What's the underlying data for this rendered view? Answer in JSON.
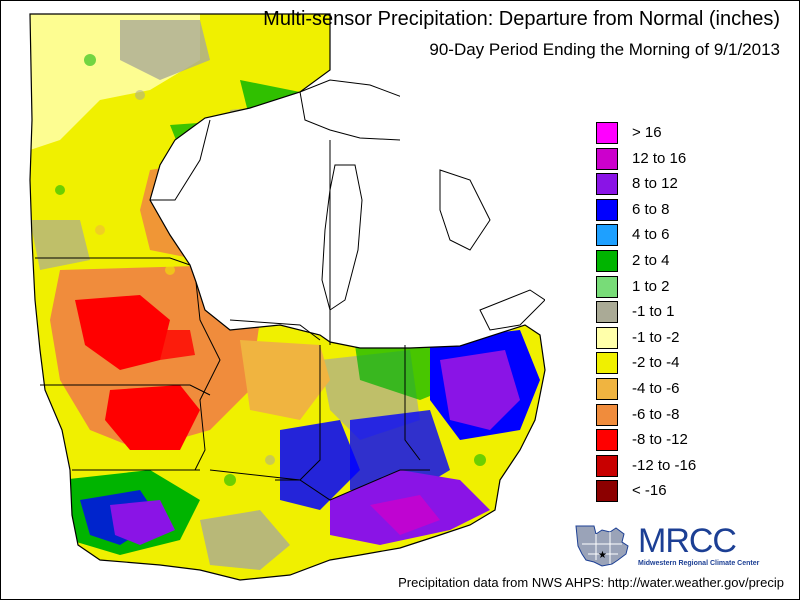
{
  "header": {
    "title": "Multi-sensor Precipitation: Departure from Normal (inches)",
    "subtitle": "90-Day Period Ending the Morning of 9/1/2013"
  },
  "legend": {
    "items": [
      {
        "label": "> 16",
        "color": "#ff00ff"
      },
      {
        "label": "12 to 16",
        "color": "#cc00cc"
      },
      {
        "label": "8 to 12",
        "color": "#8a14e6"
      },
      {
        "label": "6 to 8",
        "color": "#0000ff"
      },
      {
        "label": "4 to 6",
        "color": "#1ea0ff"
      },
      {
        "label": "2 to 4",
        "color": "#00b400"
      },
      {
        "label": "1 to 2",
        "color": "#78dc78"
      },
      {
        "label": "-1 to 1",
        "color": "#aaaa96"
      },
      {
        "label": "-1 to -2",
        "color": "#ffffaa"
      },
      {
        "label": "-2 to -4",
        "color": "#f0f000"
      },
      {
        "label": "-4 to -6",
        "color": "#f0b440"
      },
      {
        "label": "-6 to -8",
        "color": "#f08c3c"
      },
      {
        "label": "-8 to -12",
        "color": "#ff0000"
      },
      {
        "label": "-12 to -16",
        "color": "#c80000"
      },
      {
        "label": "< -16",
        "color": "#8c0000"
      }
    ]
  },
  "logo": {
    "name": "MRCC",
    "full_name": "Midwestern Regional Climate Center"
  },
  "footer": {
    "credit": "Precipitation data from NWS AHPS:  http://water.weather.gov/precip"
  },
  "colors": {
    "lake": "#ffffff",
    "border": "#000000",
    "logo_blue": "#1c3f94"
  }
}
